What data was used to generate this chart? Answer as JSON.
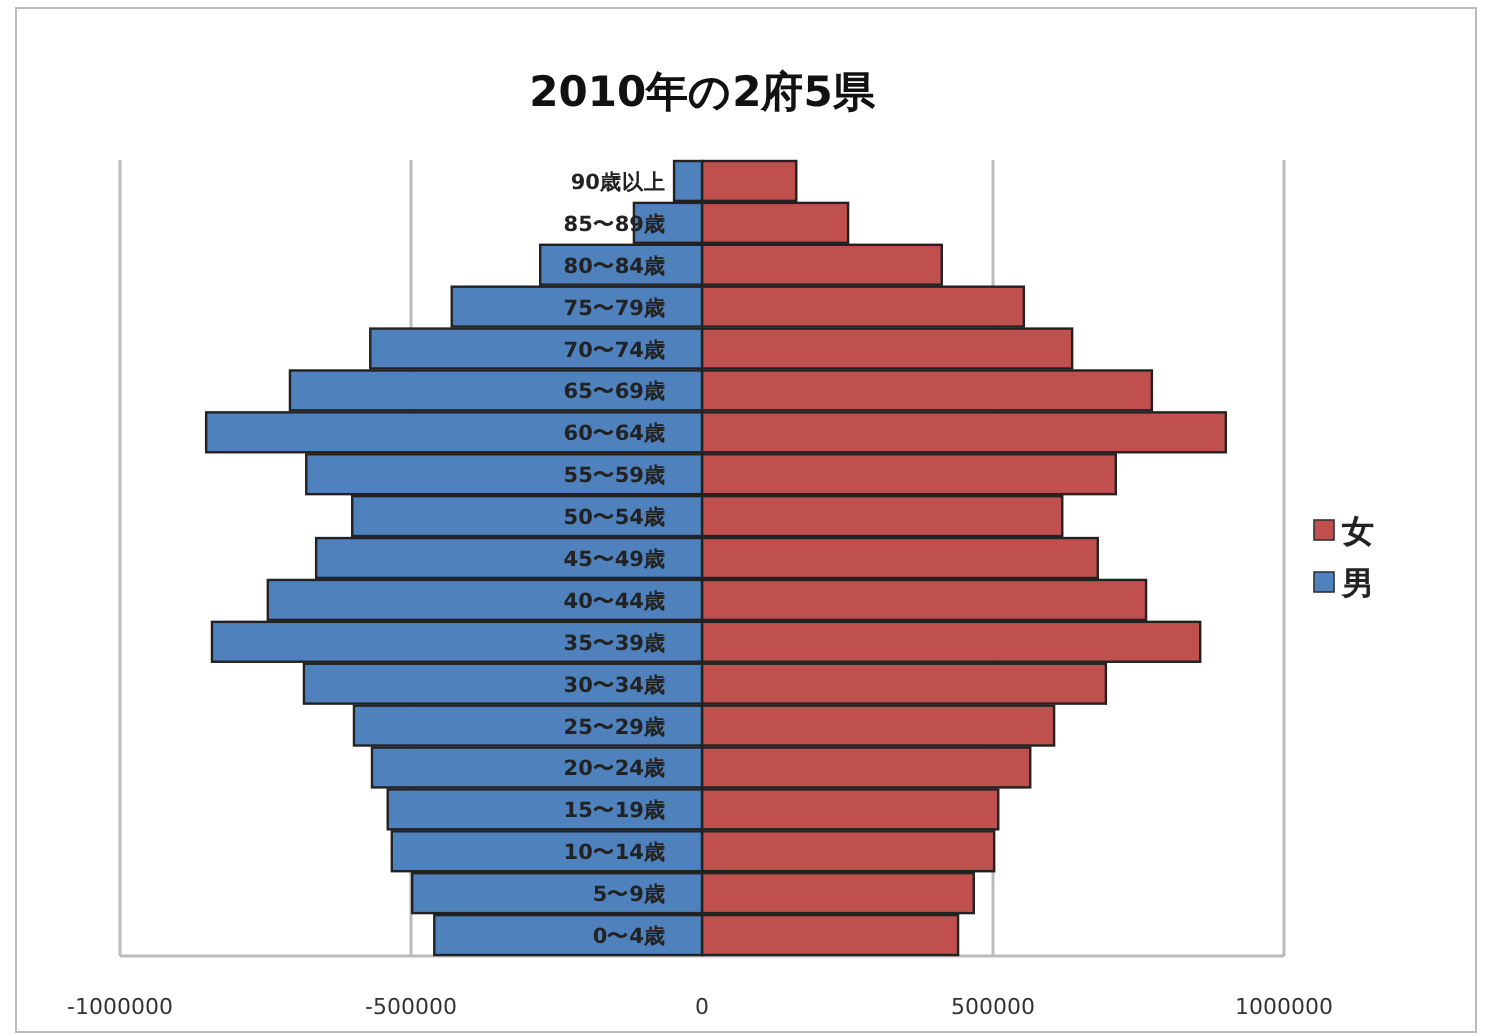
{
  "chart_data": {
    "type": "bar",
    "orientation": "horizontal",
    "title": "2010年の2府5県",
    "categories": [
      "90歳以上",
      "85〜89歳",
      "80〜84歳",
      "75〜79歳",
      "70〜74歳",
      "65〜69歳",
      "60〜64歳",
      "55〜59歳",
      "50〜54歳",
      "45〜49歳",
      "40〜44歳",
      "35〜39歳",
      "30〜34歳",
      "25〜29歳",
      "20〜24歳",
      "15〜19歳",
      "10〜14歳",
      "5〜9歳",
      "0〜4歳"
    ],
    "series": [
      {
        "name": "女",
        "color": "#c0504d",
        "values": [
          162000,
          251000,
          412000,
          553000,
          636000,
          773000,
          900000,
          711000,
          619000,
          680000,
          763000,
          856000,
          694000,
          605000,
          564000,
          509000,
          502000,
          467000,
          440000
        ]
      },
      {
        "name": "男",
        "color": "#4f81bd",
        "values": [
          -48000,
          -117000,
          -278000,
          -430000,
          -570000,
          -708000,
          -852000,
          -680000,
          -601000,
          -663000,
          -746000,
          -842000,
          -684000,
          -598000,
          -567000,
          -540000,
          -533000,
          -498000,
          -460000
        ]
      }
    ],
    "xlim": [
      -1000000,
      1000000
    ],
    "xticks": [
      -1000000,
      -500000,
      0,
      500000,
      1000000
    ],
    "stacked": true,
    "grid": "x",
    "legend": "right"
  }
}
